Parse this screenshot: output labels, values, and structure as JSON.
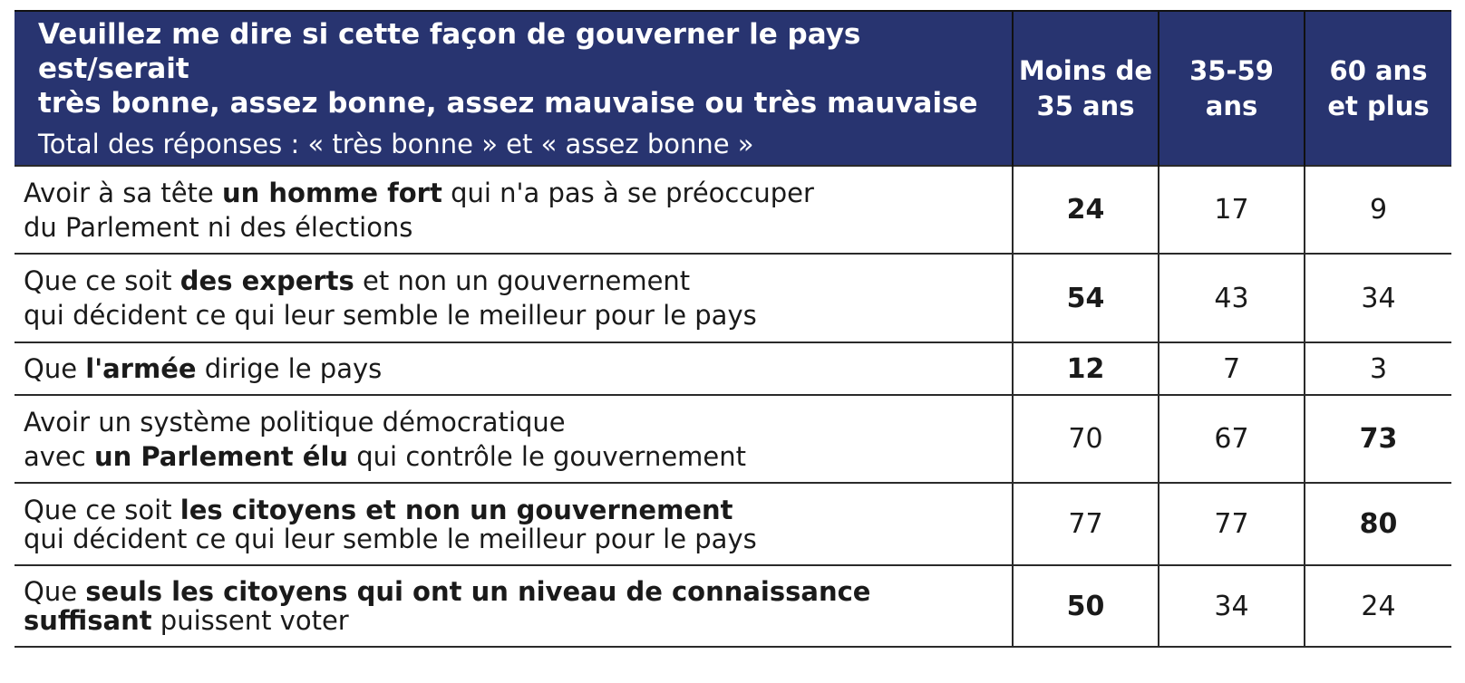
{
  "header": {
    "title_line1": "Veuillez me dire si cette façon de gouverner le pays est/serait",
    "title_line2": "très bonne, assez bonne, assez mauvaise ou très mauvaise",
    "subtitle": "Total des réponses : « très bonne » et « assez bonne »"
  },
  "chart_data": {
    "type": "table",
    "title": "Veuillez me dire si cette façon de gouverner le pays est/serait très bonne, assez bonne, assez mauvaise ou très mauvaise",
    "subtitle": "Total des réponses : « très bonne » et « assez bonne »",
    "columns": [
      {
        "line1": "Moins de",
        "line2": "35 ans"
      },
      {
        "line1": "35-59",
        "line2": "ans"
      },
      {
        "line1": "60 ans",
        "line2": "et plus"
      }
    ],
    "rows": [
      {
        "lines": [
          [
            {
              "t": "Avoir à sa tête "
            },
            {
              "t": "un homme fort",
              "b": true
            },
            {
              "t": " qui n'a pas à se préoccuper"
            }
          ],
          [
            {
              "t": "du Parlement ni des élections"
            }
          ]
        ],
        "values": [
          24,
          17,
          9
        ],
        "highlight": 0
      },
      {
        "lines": [
          [
            {
              "t": "Que ce soit "
            },
            {
              "t": "des experts",
              "b": true
            },
            {
              "t": " et non un gouvernement"
            }
          ],
          [
            {
              "t": "qui décident ce qui leur semble le meilleur pour le pays"
            }
          ]
        ],
        "values": [
          54,
          43,
          34
        ],
        "highlight": 0
      },
      {
        "lines": [
          [
            {
              "t": "Que "
            },
            {
              "t": "l'armée",
              "b": true
            },
            {
              "t": " dirige le pays"
            }
          ]
        ],
        "values": [
          12,
          7,
          3
        ],
        "highlight": 0
      },
      {
        "lines": [
          [
            {
              "t": "Avoir un système politique démocratique"
            }
          ],
          [
            {
              "t": "avec "
            },
            {
              "t": "un Parlement élu",
              "b": true
            },
            {
              "t": " qui contrôle le gouvernement"
            }
          ]
        ],
        "values": [
          70,
          67,
          73
        ],
        "highlight": 2
      },
      {
        "lines": [
          [
            {
              "t": "Que ce soit "
            },
            {
              "t": "les citoyens et non un gouvernement",
              "b": true
            }
          ],
          [
            {
              "t": "qui décident ce qui leur semble le meilleur pour le pays"
            }
          ]
        ],
        "values": [
          77,
          77,
          80
        ],
        "highlight": 2
      },
      {
        "lines": [
          [
            {
              "t": "Que "
            },
            {
              "t": "seuls les citoyens qui ont un niveau de connaissance",
              "b": true
            }
          ],
          [
            {
              "t": "suffisant",
              "b": true
            },
            {
              "t": " puissent voter"
            }
          ]
        ],
        "values": [
          50,
          34,
          24
        ],
        "highlight": 0
      }
    ],
    "colors": {
      "header_bg": "#283470",
      "header_text": "#ffffff"
    }
  }
}
